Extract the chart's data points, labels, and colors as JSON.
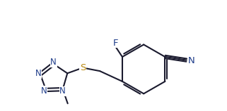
{
  "background_color": "#ffffff",
  "bond_color": "#1a1a2e",
  "atom_colors": {
    "N": "#1f3d8a",
    "F": "#1f3d8a",
    "S": "#b8860b",
    "C": "#1a1a2e"
  },
  "bond_width": 1.5,
  "font_size": 8.5,
  "figsize": [
    3.21,
    1.58
  ],
  "dpi": 100
}
